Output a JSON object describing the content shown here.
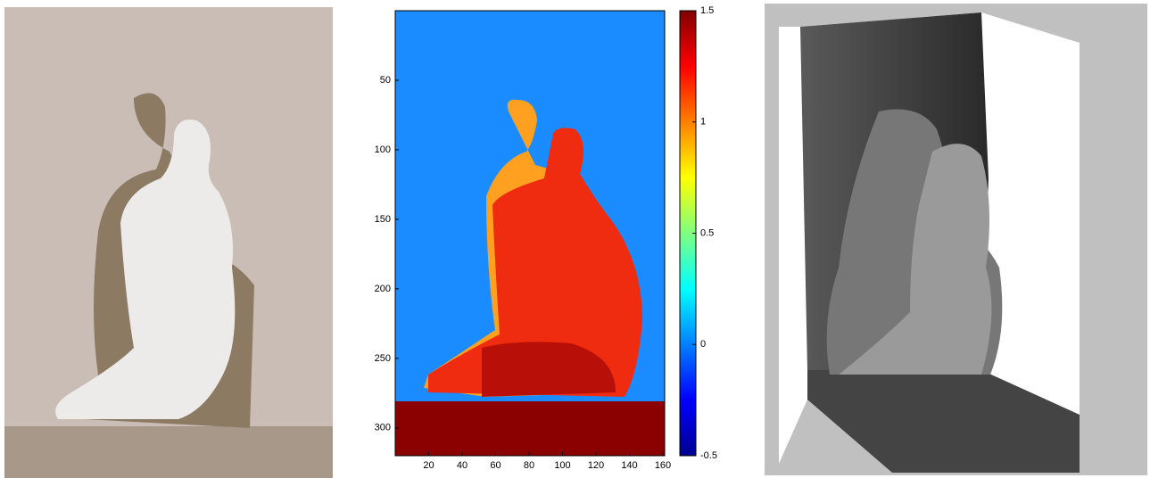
{
  "depth_map": {
    "xlim": [
      0,
      160
    ],
    "xticks": [
      20,
      40,
      60,
      80,
      100,
      120,
      140,
      160
    ],
    "ylim": [
      0,
      320
    ],
    "yticks": [
      50,
      100,
      150,
      200,
      250,
      300
    ],
    "colorbar": {
      "lim": [
        -0.5,
        1.5
      ],
      "ticks": [
        1.5,
        1,
        0.5,
        0,
        -0.5
      ]
    }
  }
}
